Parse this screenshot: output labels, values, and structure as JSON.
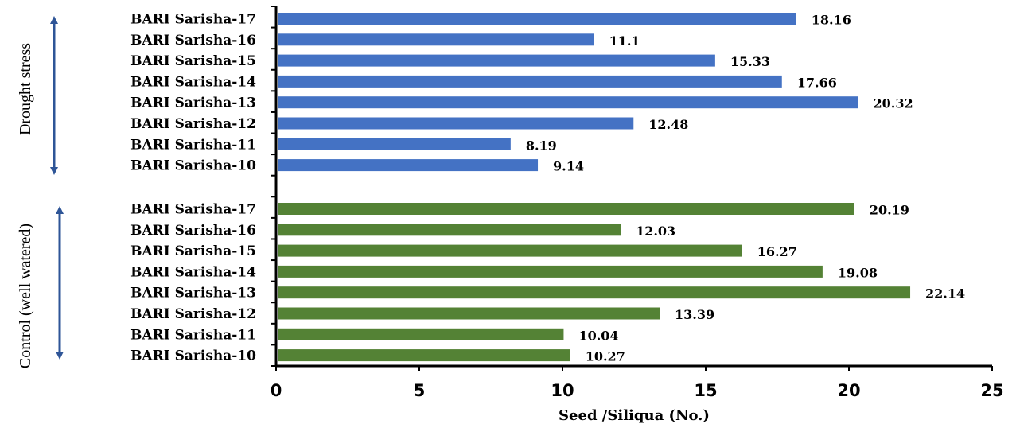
{
  "chart_data": {
    "type": "bar",
    "orientation": "horizontal",
    "xlabel": "Seed /Siliqua (No.)",
    "ylabel": "",
    "xlim": [
      0,
      25
    ],
    "xticks": [
      0,
      5,
      10,
      15,
      20,
      25
    ],
    "grid": false,
    "legend": "none",
    "groups": [
      {
        "name": "Drought stress",
        "color": "#4472C4",
        "categories": [
          "BARI Sarisha-17",
          "BARI Sarisha-16",
          "BARI Sarisha-15",
          "BARI Sarisha-14",
          "BARI Sarisha-13",
          "BARI Sarisha-12",
          "BARI Sarisha-11",
          "BARI Sarisha-10"
        ],
        "values": [
          18.16,
          11.1,
          15.33,
          17.66,
          20.32,
          12.48,
          8.19,
          9.14
        ],
        "value_labels": [
          "18.16",
          "11.1",
          "15.33",
          "17.66",
          "20.32",
          "12.48",
          "8.19",
          "9.14"
        ]
      },
      {
        "name": "Control (well watered)",
        "color": "#548235",
        "categories": [
          "BARI Sarisha-17",
          "BARI Sarisha-16",
          "BARI Sarisha-15",
          "BARI Sarisha-14",
          "BARI Sarisha-13",
          "BARI Sarisha-12",
          "BARI Sarisha-11",
          "BARI Sarisha-10"
        ],
        "values": [
          20.19,
          12.03,
          16.27,
          19.08,
          22.14,
          13.39,
          10.04,
          10.27
        ],
        "value_labels": [
          "20.19",
          "12.03",
          "16.27",
          "19.08",
          "22.14",
          "13.39",
          "10.04",
          "10.27"
        ]
      }
    ],
    "arrow_color": "#2E5597"
  }
}
